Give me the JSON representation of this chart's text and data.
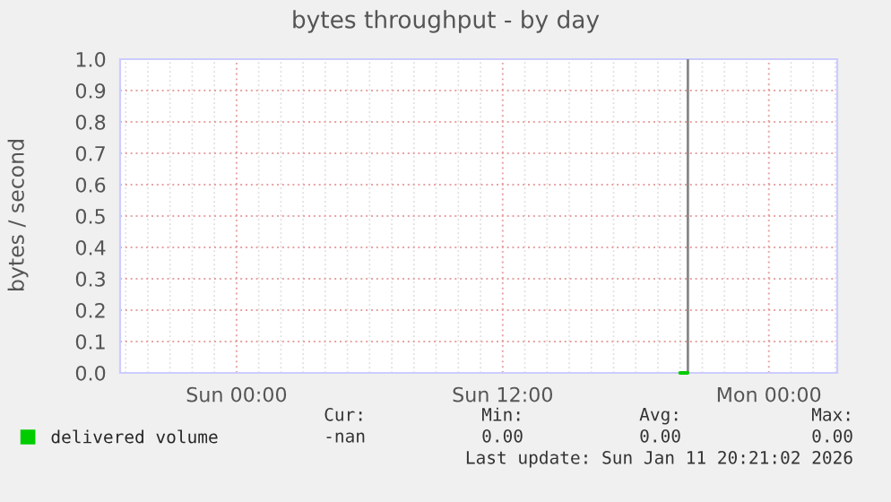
{
  "chart_data": {
    "type": "line",
    "title": "bytes throughput - by day",
    "ylabel": "bytes / second",
    "series": [
      {
        "name": "delivered volume",
        "color": "#00cc00",
        "x": [
          "2026-01-11T20:00",
          "2026-01-11T20:20"
        ],
        "values": [
          0,
          0
        ]
      }
    ],
    "xlim": [
      "2026-01-10T18:45",
      "2026-01-12T03:05"
    ],
    "xticks": [
      {
        "value": "2026-01-11T00:00",
        "label": "Sun 00:00"
      },
      {
        "value": "2026-01-11T12:00",
        "label": "Sun 12:00"
      },
      {
        "value": "2026-01-12T00:00",
        "label": "Mon 00:00"
      }
    ],
    "ylim": [
      0,
      1
    ],
    "yticks": [
      {
        "value": 0,
        "label": "0.0"
      },
      0.1,
      0.2,
      0.3,
      0.4,
      0.5,
      0.6,
      0.7,
      0.8,
      0.9,
      {
        "value": 1,
        "label": "1.0"
      }
    ],
    "ref_lines": [
      {
        "axis": "x",
        "value": "2026-01-11T20:21",
        "color": "#888888"
      }
    ],
    "grid": true,
    "legend": "bottom left",
    "annotations": [
      "Cur:",
      "Min:",
      "Avg:",
      "Max:",
      "-nan",
      "0.00",
      "0.00",
      "0.00",
      "Last update: Sun Jan 11 20:21:02 2026"
    ]
  }
}
